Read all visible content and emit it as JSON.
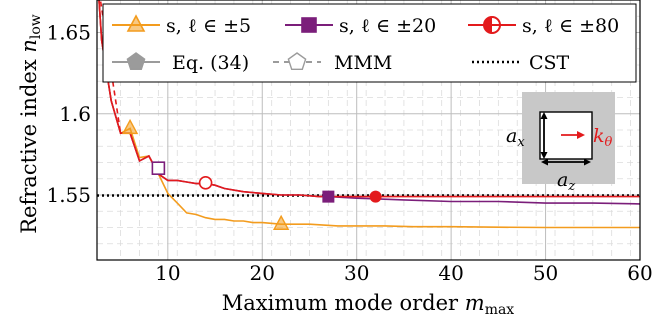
{
  "chart_data": {
    "type": "line",
    "xlabel": {
      "text": "Maximum mode order ",
      "var": "m",
      "sub": "max"
    },
    "ylabel": {
      "text": "Refractive index ",
      "var": "n",
      "sub": "low"
    },
    "xlim": [
      2.5,
      60
    ],
    "ylim": [
      1.51,
      1.67
    ],
    "xticks": [
      10,
      20,
      30,
      40,
      50,
      60
    ],
    "yticks": [
      1.55,
      1.6,
      1.65
    ],
    "ytick_labels": [
      "1.55",
      "1.6",
      "1.65"
    ],
    "grid": true,
    "minor_grid": true,
    "legend_position": "top",
    "series": [
      {
        "name": "s, ℓ ∈ ±5",
        "color": "#f39c1e",
        "marker": "triangle",
        "marker_x": [
          6,
          22
        ],
        "x": [
          2.6,
          3,
          4,
          5,
          6,
          7,
          8,
          9,
          10,
          11,
          12,
          13,
          14,
          15,
          16,
          17,
          18,
          19,
          20,
          22,
          25,
          28,
          30,
          33,
          36,
          40,
          45,
          50,
          55,
          60
        ],
        "y": [
          1.68,
          1.645,
          1.608,
          1.588,
          1.591,
          1.573,
          1.574,
          1.563,
          1.551,
          1.545,
          1.539,
          1.538,
          1.536,
          1.535,
          1.535,
          1.534,
          1.534,
          1.533,
          1.533,
          1.532,
          1.532,
          1.531,
          1.531,
          1.531,
          1.5305,
          1.5305,
          1.5302,
          1.53,
          1.53,
          1.53
        ]
      },
      {
        "name": "s, ℓ ∈ ±20",
        "color": "#7b1e7a",
        "marker": "square",
        "marker_x": [
          27
        ],
        "x": [
          2.6,
          3,
          4,
          5,
          6,
          7,
          8,
          9,
          10,
          11,
          12,
          13,
          14,
          15,
          16,
          18,
          20,
          22,
          24,
          26,
          27,
          30,
          35,
          40,
          45,
          50,
          55,
          60
        ],
        "y": [
          1.68,
          1.645,
          1.608,
          1.588,
          1.588,
          1.571,
          1.574,
          1.563,
          1.559,
          1.559,
          1.558,
          1.557,
          1.557,
          1.556,
          1.554,
          1.552,
          1.551,
          1.55,
          1.55,
          1.549,
          1.549,
          1.548,
          1.547,
          1.546,
          1.546,
          1.545,
          1.545,
          1.5445
        ]
      },
      {
        "name": "s, ℓ ∈ ±80",
        "color": "#e31a1c",
        "marker": "circle",
        "marker_x": [
          32
        ],
        "x": [
          2.6,
          3,
          4,
          5,
          6,
          7,
          8,
          9,
          10,
          11,
          12,
          13,
          14,
          15,
          16,
          18,
          20,
          22,
          24,
          26,
          28,
          30,
          32,
          35,
          40,
          45,
          50,
          55,
          60
        ],
        "y": [
          1.68,
          1.645,
          1.608,
          1.588,
          1.588,
          1.571,
          1.574,
          1.563,
          1.559,
          1.559,
          1.558,
          1.557,
          1.557,
          1.556,
          1.554,
          1.552,
          1.551,
          1.55,
          1.55,
          1.549,
          1.549,
          1.549,
          1.549,
          1.549,
          1.549,
          1.549,
          1.549,
          1.549,
          1.549
        ]
      },
      {
        "name": "Eq. (34)",
        "color": "#9b9b9b",
        "marker": "pentagon",
        "marker_x": [],
        "x": [],
        "y": []
      },
      {
        "name": "MMM",
        "color": "#9b9b9b",
        "marker": "pentagon-open",
        "dashed": true,
        "marker_x": [
          9,
          14
        ],
        "x": [
          9,
          14
        ],
        "y": [
          1.5665,
          1.5575
        ]
      },
      {
        "name": "CST",
        "color": "#000000",
        "dotted": true,
        "x": [
          2.5,
          60
        ],
        "y": [
          1.5497,
          1.5497
        ]
      }
    ],
    "inset": {
      "labels": {
        "ax": "a",
        "ax_sub": "x",
        "az": "a",
        "az_sub": "z",
        "k": "k",
        "k_sub": "θ"
      },
      "colors": {
        "background": "#c8c8c8",
        "box": "#ffffff",
        "arrow": "#e31a1c"
      }
    }
  }
}
